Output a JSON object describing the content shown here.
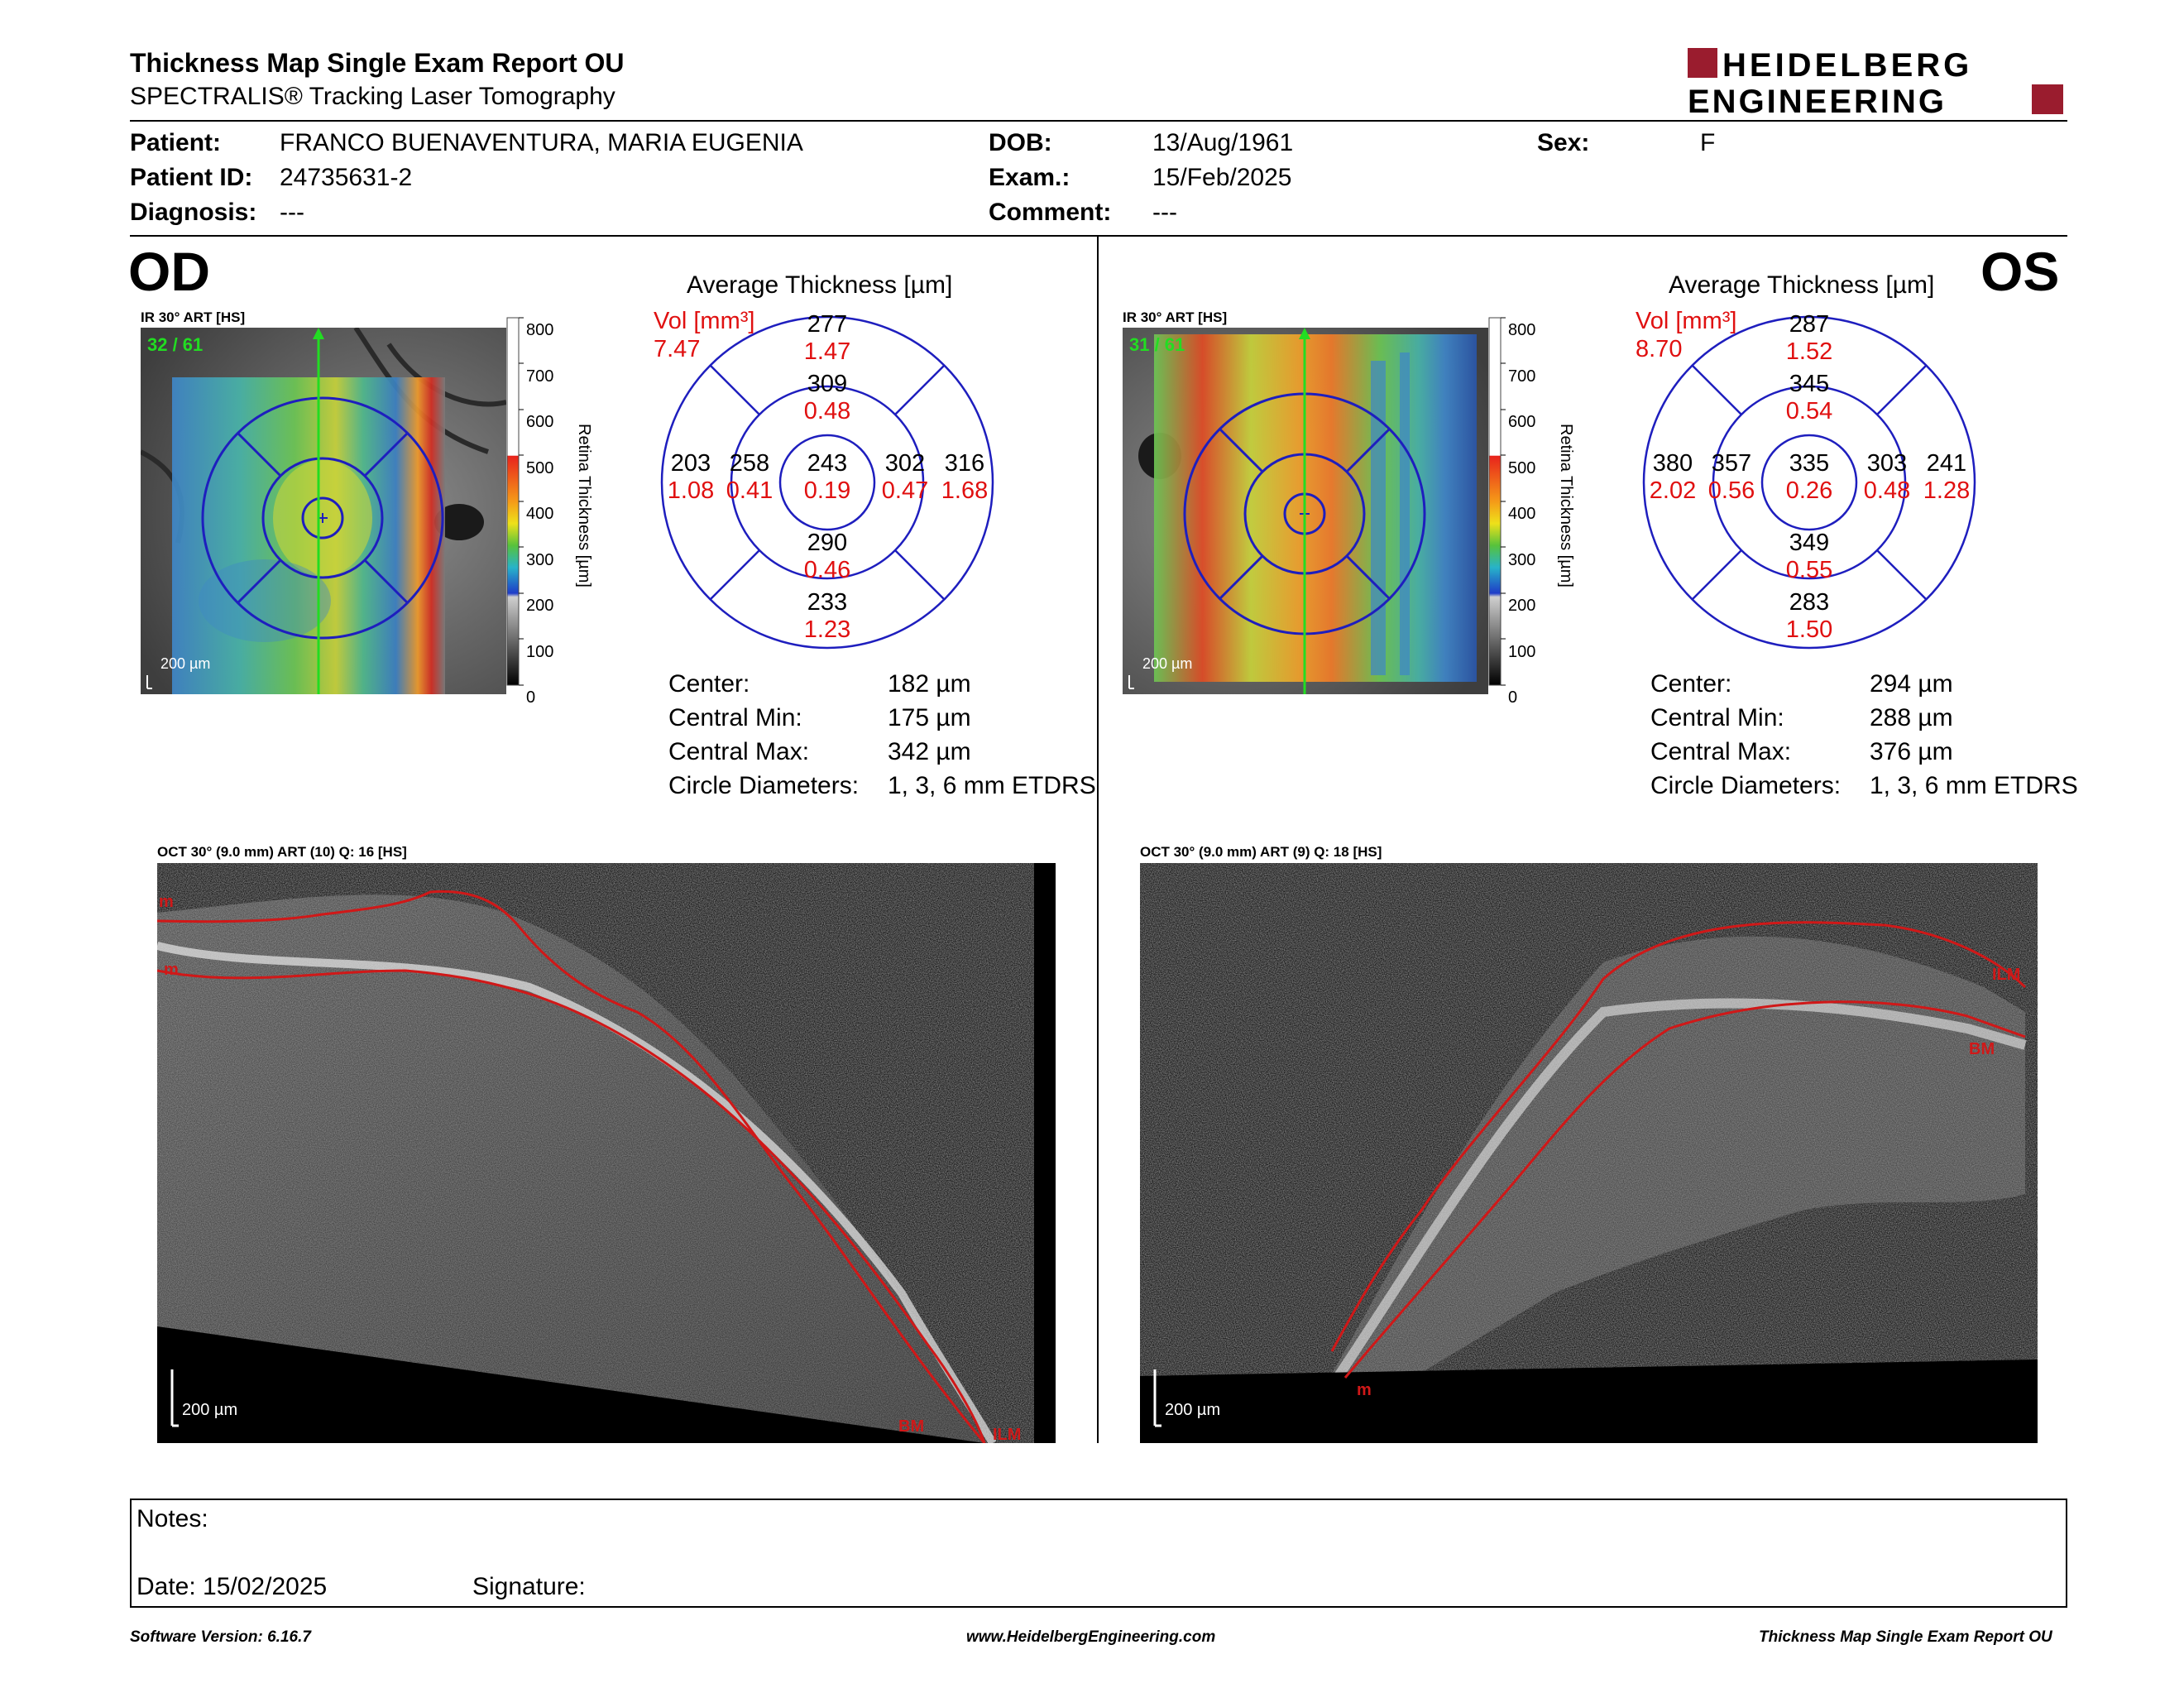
{
  "header": {
    "title": "Thickness Map Single Exam Report OU",
    "subtitle": "SPECTRALIS® Tracking Laser Tomography",
    "logo_line1": "HEIDELBERG",
    "logo_line2": "ENGINEERING",
    "logo_color": "#9a1c2e"
  },
  "patient": {
    "patient_label": "Patient:",
    "patient_value": "FRANCO BUENAVENTURA, MARIA EUGENIA",
    "id_label": "Patient ID:",
    "id_value": "24735631-2",
    "diag_label": "Diagnosis:",
    "diag_value": "---",
    "dob_label": "DOB:",
    "dob_value": "13/Aug/1961",
    "exam_label": "Exam.:",
    "exam_value": "15/Feb/2025",
    "comment_label": "Comment:",
    "comment_value": "---",
    "sex_label": "Sex:",
    "sex_value": "F"
  },
  "od": {
    "eye": "OD",
    "map_label": "IR 30° ART [HS]",
    "frame": "32 / 61",
    "scale": "200 µm",
    "avg_title": "Average Thickness [µm]",
    "vol_label": "Vol [mm³]",
    "vol_value": "7.47",
    "sectors": {
      "center": {
        "t": "243",
        "v": "0.19"
      },
      "inner_sup": {
        "t": "309",
        "v": "0.48"
      },
      "inner_inf": {
        "t": "290",
        "v": "0.46"
      },
      "inner_left": {
        "t": "258",
        "v": "0.41"
      },
      "inner_right": {
        "t": "302",
        "v": "0.47"
      },
      "outer_sup": {
        "t": "277",
        "v": "1.47"
      },
      "outer_inf": {
        "t": "233",
        "v": "1.23"
      },
      "outer_left": {
        "t": "203",
        "v": "1.08"
      },
      "outer_right": {
        "t": "316",
        "v": "1.68"
      }
    },
    "stats": {
      "center_label": "Center:",
      "center_value": "182 µm",
      "min_label": "Central Min:",
      "min_value": "175 µm",
      "max_label": "Central Max:",
      "max_value": "342 µm",
      "circ_label": "Circle Diameters:",
      "circ_value": "1, 3, 6 mm ETDRS"
    },
    "oct_label": "OCT 30° (9.0 mm) ART (10) Q: 16 [HS]",
    "oct_scale": "200 µm",
    "oct_layers": [
      "m",
      "m",
      "BM",
      "ILM"
    ]
  },
  "os": {
    "eye": "OS",
    "map_label": "IR 30° ART [HS]",
    "frame": "31 / 61",
    "scale": "200 µm",
    "avg_title": "Average Thickness [µm]",
    "vol_label": "Vol [mm³]",
    "vol_value": "8.70",
    "sectors": {
      "center": {
        "t": "335",
        "v": "0.26"
      },
      "inner_sup": {
        "t": "345",
        "v": "0.54"
      },
      "inner_inf": {
        "t": "349",
        "v": "0.55"
      },
      "inner_left": {
        "t": "357",
        "v": "0.56"
      },
      "inner_right": {
        "t": "303",
        "v": "0.48"
      },
      "outer_sup": {
        "t": "287",
        "v": "1.52"
      },
      "outer_inf": {
        "t": "283",
        "v": "1.50"
      },
      "outer_left": {
        "t": "380",
        "v": "2.02"
      },
      "outer_right": {
        "t": "241",
        "v": "1.28"
      }
    },
    "stats": {
      "center_label": "Center:",
      "center_value": "294 µm",
      "min_label": "Central Min:",
      "min_value": "288 µm",
      "max_label": "Central Max:",
      "max_value": "376 µm",
      "circ_label": "Circle Diameters:",
      "circ_value": "1, 3, 6 mm ETDRS"
    },
    "oct_label": "OCT 30° (9.0 mm) ART (9) Q: 18 [HS]",
    "oct_scale": "200 µm",
    "oct_layers": [
      "ILM",
      "BM",
      "m"
    ]
  },
  "colorbar": {
    "ticks": [
      "800",
      "700",
      "600",
      "500",
      "400",
      "300",
      "200",
      "100",
      "0"
    ],
    "title": "Retina Thickness [µm]"
  },
  "notes": {
    "notes_label": "Notes:",
    "date_label": "Date: 15/02/2025",
    "signature_label": "Signature:"
  },
  "footer": {
    "software": "Software Version: 6.16.7",
    "website": "www.HeidelbergEngineering.com",
    "report": "Thickness Map Single Exam Report OU"
  }
}
